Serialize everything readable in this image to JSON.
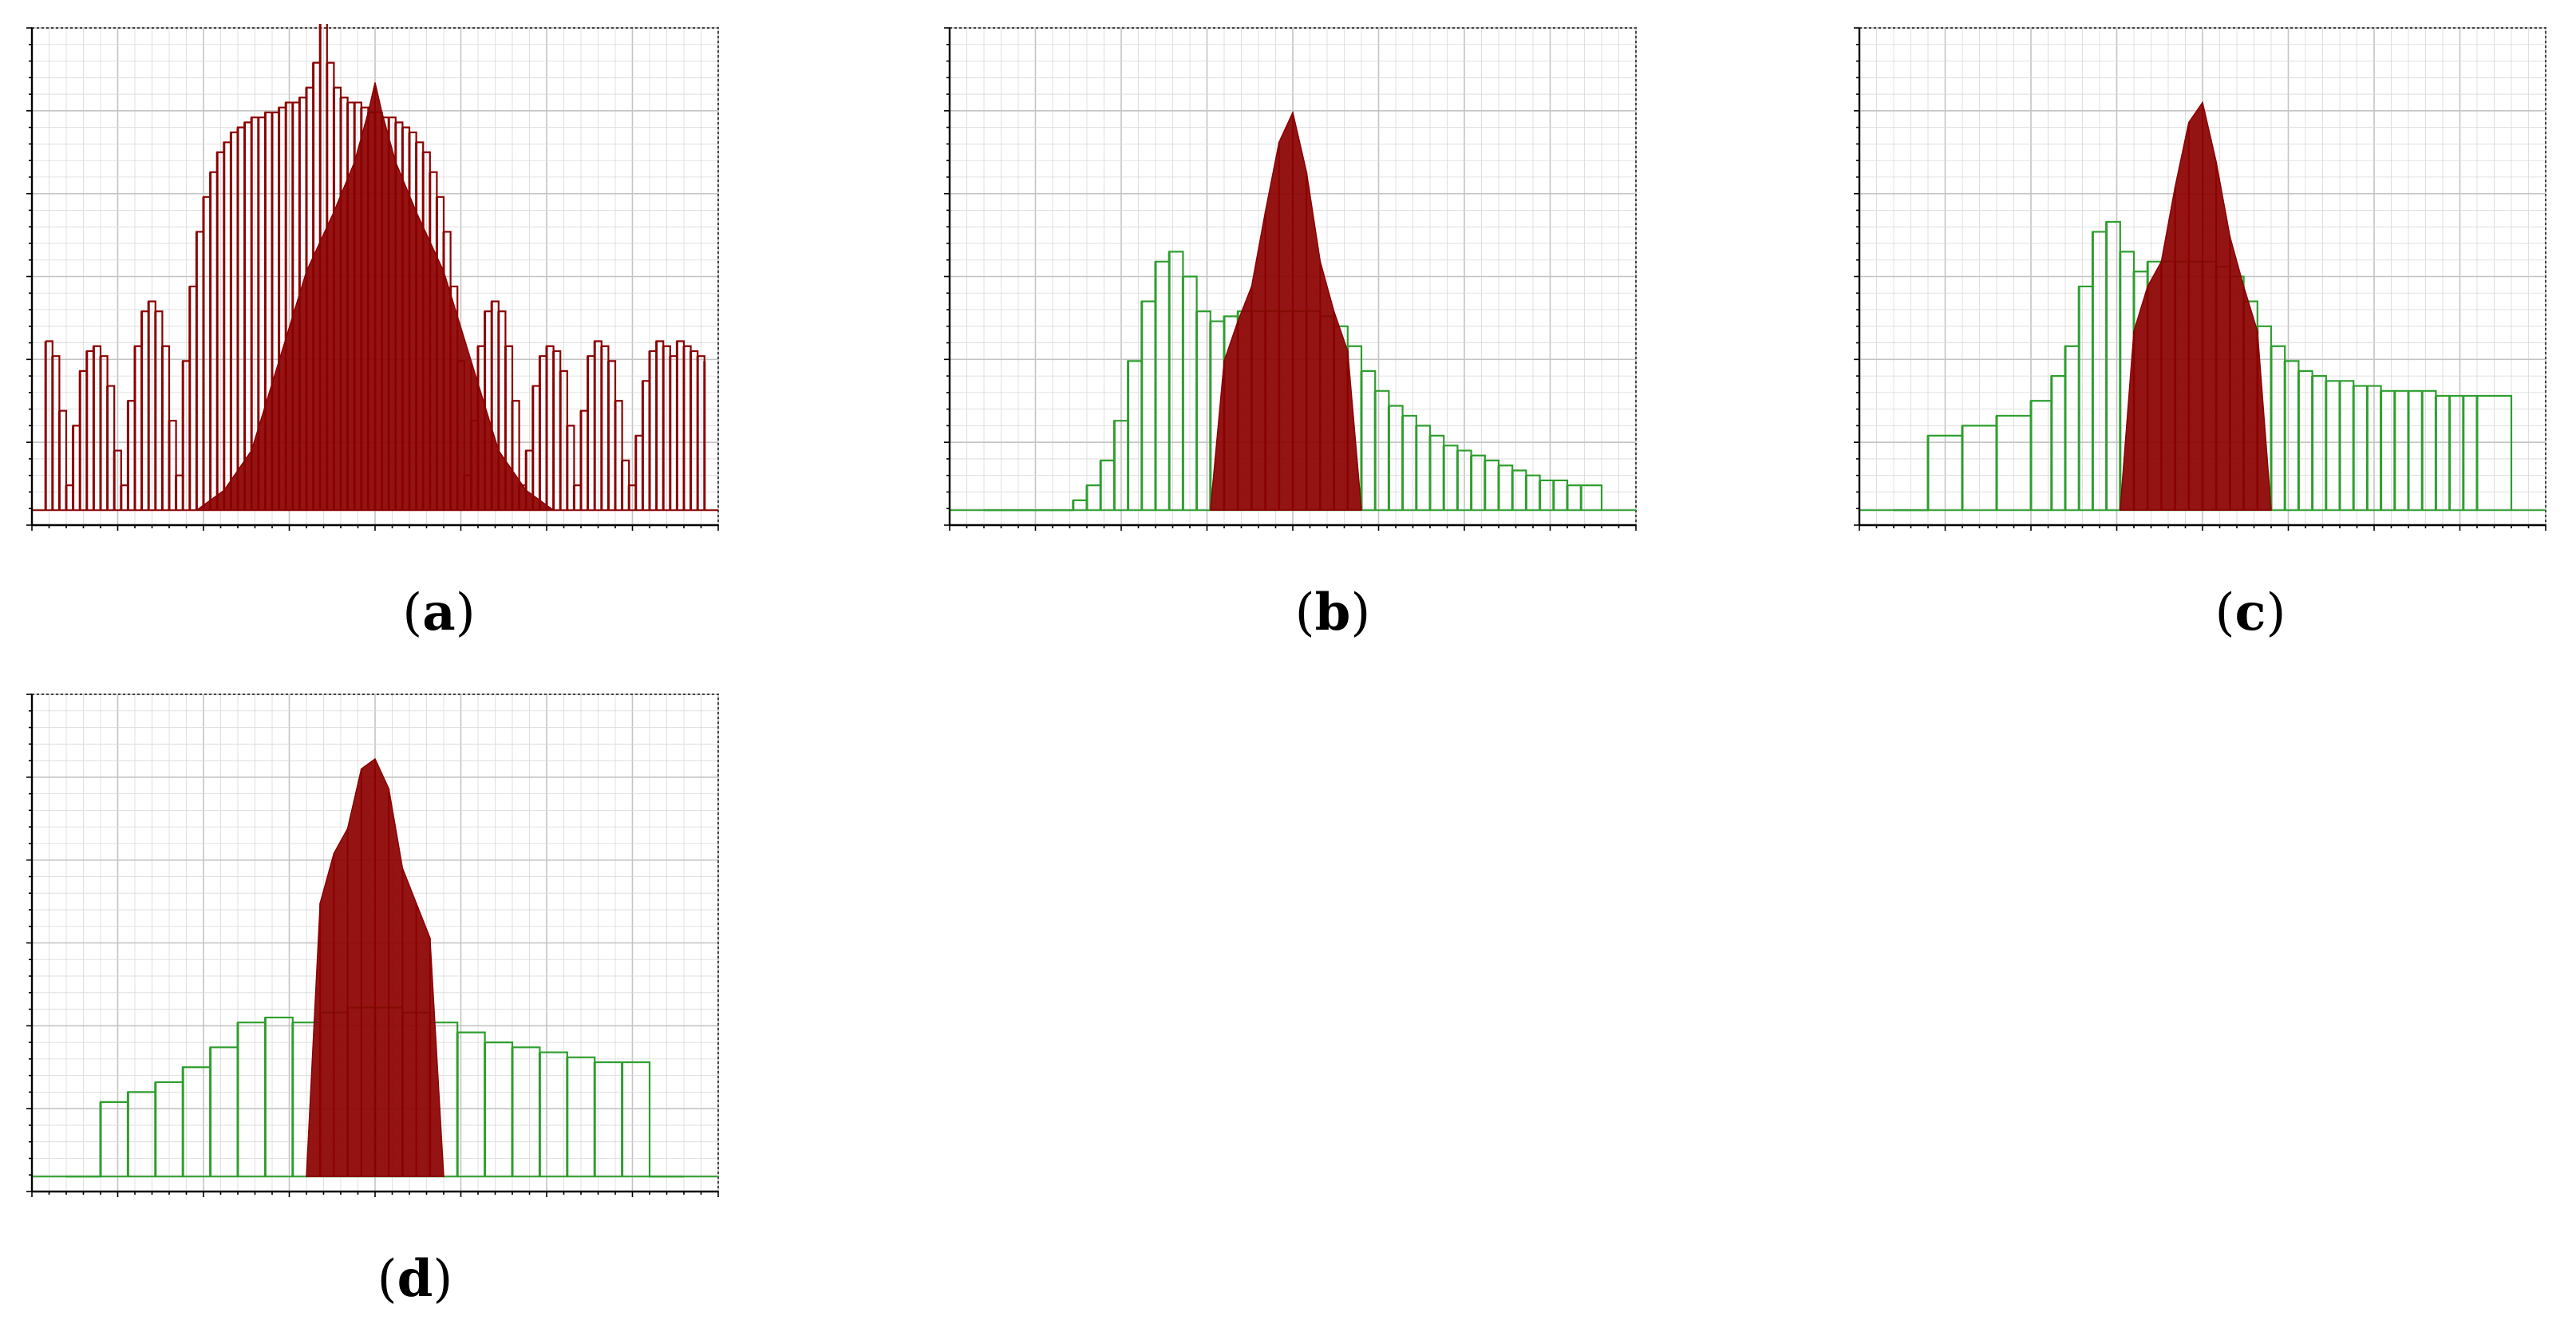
{
  "figure": {
    "panels": [
      {
        "id": "a",
        "caption_open": "(",
        "caption_letter": "a",
        "caption_close": ")"
      },
      {
        "id": "b",
        "caption_open": "(",
        "caption_letter": "b",
        "caption_close": ")"
      },
      {
        "id": "c",
        "caption_open": "(",
        "caption_letter": "c",
        "caption_close": ")"
      },
      {
        "id": "d",
        "caption_open": "(",
        "caption_letter": "d",
        "caption_close": ")"
      }
    ]
  },
  "colors": {
    "red_series": "#8b0000",
    "green_series": "#2e9e2e",
    "grid": "#d9d9d9",
    "axis": "#000000",
    "background": "#ffffff"
  },
  "chart_data": [
    {
      "panel": "a",
      "type": "bar",
      "grid": true,
      "x_ticks_labeled": false,
      "y_ticks_labeled": false,
      "xlim": [
        0,
        1
      ],
      "ylim": [
        0,
        1
      ],
      "series": [
        {
          "color": "#8b0000",
          "style": "stems",
          "x": [
            0.02,
            0.03,
            0.04,
            0.05,
            0.06,
            0.07,
            0.08,
            0.09,
            0.1,
            0.11,
            0.12,
            0.13,
            0.14,
            0.15,
            0.16,
            0.17,
            0.18,
            0.19,
            0.2,
            0.21,
            0.22,
            0.23,
            0.24,
            0.25,
            0.26,
            0.27,
            0.28,
            0.29,
            0.3,
            0.31,
            0.32,
            0.33,
            0.34,
            0.35,
            0.36,
            0.37,
            0.38,
            0.39,
            0.4,
            0.41,
            0.42,
            0.43,
            0.44,
            0.45,
            0.46,
            0.47,
            0.48,
            0.49,
            0.5,
            0.51,
            0.52,
            0.53,
            0.54,
            0.55,
            0.56,
            0.57,
            0.58,
            0.59,
            0.6,
            0.61,
            0.62,
            0.63,
            0.64,
            0.65,
            0.66,
            0.67,
            0.68,
            0.69,
            0.7,
            0.71,
            0.72,
            0.73,
            0.74,
            0.75,
            0.76,
            0.77,
            0.78,
            0.79,
            0.8,
            0.81,
            0.82,
            0.83,
            0.84,
            0.85,
            0.86,
            0.87,
            0.88,
            0.89,
            0.9,
            0.91,
            0.92,
            0.93,
            0.94,
            0.95,
            0.96,
            0.97,
            0.98
          ],
          "y": [
            0.34,
            0.31,
            0.2,
            0.05,
            0.17,
            0.28,
            0.32,
            0.33,
            0.31,
            0.25,
            0.12,
            0.05,
            0.22,
            0.33,
            0.4,
            0.42,
            0.4,
            0.33,
            0.18,
            0.07,
            0.3,
            0.45,
            0.56,
            0.63,
            0.68,
            0.72,
            0.74,
            0.76,
            0.77,
            0.78,
            0.79,
            0.79,
            0.8,
            0.8,
            0.81,
            0.82,
            0.82,
            0.83,
            0.85,
            0.9,
            1.0,
            0.9,
            0.85,
            0.83,
            0.82,
            0.82,
            0.81,
            0.8,
            0.8,
            0.79,
            0.79,
            0.78,
            0.77,
            0.76,
            0.74,
            0.72,
            0.68,
            0.63,
            0.56,
            0.45,
            0.3,
            0.07,
            0.18,
            0.33,
            0.4,
            0.42,
            0.4,
            0.33,
            0.22,
            0.05,
            0.12,
            0.25,
            0.31,
            0.33,
            0.32,
            0.28,
            0.17,
            0.05,
            0.2,
            0.31,
            0.34,
            0.33,
            0.3,
            0.22,
            0.1,
            0.05,
            0.15,
            0.26,
            0.32,
            0.34,
            0.33,
            0.31,
            0.34,
            0.33,
            0.32,
            0.31,
            0.3
          ]
        },
        {
          "color": "#8b0000",
          "style": "filled",
          "x": [
            0.24,
            0.28,
            0.32,
            0.36,
            0.4,
            0.44,
            0.47,
            0.49,
            0.5,
            0.51,
            0.53,
            0.56,
            0.6,
            0.64,
            0.68,
            0.72,
            0.76
          ],
          "y": [
            0.0,
            0.04,
            0.12,
            0.3,
            0.48,
            0.6,
            0.7,
            0.8,
            0.86,
            0.8,
            0.7,
            0.6,
            0.48,
            0.3,
            0.12,
            0.04,
            0.0
          ]
        }
      ]
    },
    {
      "panel": "b",
      "type": "bar",
      "grid": true,
      "x_ticks_labeled": false,
      "y_ticks_labeled": false,
      "xlim": [
        0,
        1
      ],
      "ylim": [
        0,
        1
      ],
      "series": [
        {
          "color": "#2e9e2e",
          "style": "stems",
          "x": [
            0.05,
            0.1,
            0.15,
            0.18,
            0.2,
            0.22,
            0.24,
            0.26,
            0.28,
            0.3,
            0.32,
            0.34,
            0.36,
            0.38,
            0.4,
            0.42,
            0.44,
            0.46,
            0.48,
            0.5,
            0.52,
            0.54,
            0.56,
            0.58,
            0.6,
            0.62,
            0.64,
            0.66,
            0.68,
            0.7,
            0.72,
            0.74,
            0.76,
            0.78,
            0.8,
            0.82,
            0.84,
            0.86,
            0.88,
            0.9,
            0.92,
            0.95
          ],
          "y": [
            0.0,
            0.0,
            0.0,
            0.02,
            0.05,
            0.1,
            0.18,
            0.3,
            0.42,
            0.5,
            0.52,
            0.47,
            0.4,
            0.38,
            0.39,
            0.4,
            0.4,
            0.4,
            0.4,
            0.4,
            0.4,
            0.39,
            0.37,
            0.33,
            0.28,
            0.24,
            0.21,
            0.19,
            0.17,
            0.15,
            0.13,
            0.12,
            0.11,
            0.1,
            0.09,
            0.08,
            0.07,
            0.06,
            0.06,
            0.05,
            0.05,
            0.0
          ]
        },
        {
          "color": "#8b0000",
          "style": "filled",
          "x": [
            0.38,
            0.4,
            0.42,
            0.44,
            0.46,
            0.48,
            0.5,
            0.52,
            0.54,
            0.56,
            0.58,
            0.6
          ],
          "y": [
            0.0,
            0.3,
            0.38,
            0.45,
            0.6,
            0.74,
            0.8,
            0.68,
            0.5,
            0.4,
            0.32,
            0.0
          ]
        }
      ]
    },
    {
      "panel": "c",
      "type": "bar",
      "grid": true,
      "x_ticks_labeled": false,
      "y_ticks_labeled": false,
      "xlim": [
        0,
        1
      ],
      "ylim": [
        0,
        1
      ],
      "series": [
        {
          "color": "#2e9e2e",
          "style": "stems",
          "x": [
            0.05,
            0.1,
            0.15,
            0.2,
            0.25,
            0.28,
            0.3,
            0.32,
            0.34,
            0.36,
            0.38,
            0.4,
            0.42,
            0.44,
            0.46,
            0.48,
            0.5,
            0.52,
            0.54,
            0.56,
            0.58,
            0.6,
            0.62,
            0.64,
            0.66,
            0.68,
            0.7,
            0.72,
            0.74,
            0.76,
            0.78,
            0.8,
            0.82,
            0.84,
            0.86,
            0.88,
            0.9,
            0.95
          ],
          "y": [
            0.0,
            0.15,
            0.17,
            0.19,
            0.22,
            0.27,
            0.33,
            0.45,
            0.56,
            0.58,
            0.52,
            0.48,
            0.5,
            0.5,
            0.5,
            0.5,
            0.5,
            0.49,
            0.47,
            0.42,
            0.37,
            0.33,
            0.3,
            0.28,
            0.27,
            0.26,
            0.26,
            0.25,
            0.25,
            0.24,
            0.24,
            0.24,
            0.24,
            0.23,
            0.23,
            0.23,
            0.23,
            0.0
          ]
        },
        {
          "color": "#8b0000",
          "style": "filled",
          "x": [
            0.38,
            0.4,
            0.42,
            0.44,
            0.46,
            0.48,
            0.5,
            0.52,
            0.54,
            0.56,
            0.58,
            0.6
          ],
          "y": [
            0.0,
            0.36,
            0.45,
            0.5,
            0.65,
            0.78,
            0.82,
            0.7,
            0.55,
            0.45,
            0.36,
            0.0
          ]
        }
      ]
    },
    {
      "panel": "d",
      "type": "bar",
      "grid": true,
      "x_ticks_labeled": false,
      "y_ticks_labeled": false,
      "xlim": [
        0,
        1
      ],
      "ylim": [
        0,
        1
      ],
      "series": [
        {
          "color": "#2e9e2e",
          "style": "stems",
          "x": [
            0.05,
            0.1,
            0.14,
            0.18,
            0.22,
            0.26,
            0.3,
            0.34,
            0.38,
            0.42,
            0.46,
            0.5,
            0.54,
            0.58,
            0.62,
            0.66,
            0.7,
            0.74,
            0.78,
            0.82,
            0.86,
            0.9,
            0.95
          ],
          "y": [
            0.0,
            0.15,
            0.17,
            0.19,
            0.22,
            0.26,
            0.31,
            0.32,
            0.31,
            0.33,
            0.34,
            0.34,
            0.33,
            0.31,
            0.29,
            0.27,
            0.26,
            0.25,
            0.24,
            0.23,
            0.23,
            0.0,
            0.0
          ]
        },
        {
          "color": "#8b0000",
          "style": "filled",
          "x": [
            0.4,
            0.42,
            0.44,
            0.46,
            0.48,
            0.5,
            0.52,
            0.54,
            0.56,
            0.58,
            0.6
          ],
          "y": [
            0.0,
            0.55,
            0.65,
            0.7,
            0.82,
            0.84,
            0.78,
            0.62,
            0.55,
            0.48,
            0.0
          ]
        }
      ]
    }
  ]
}
